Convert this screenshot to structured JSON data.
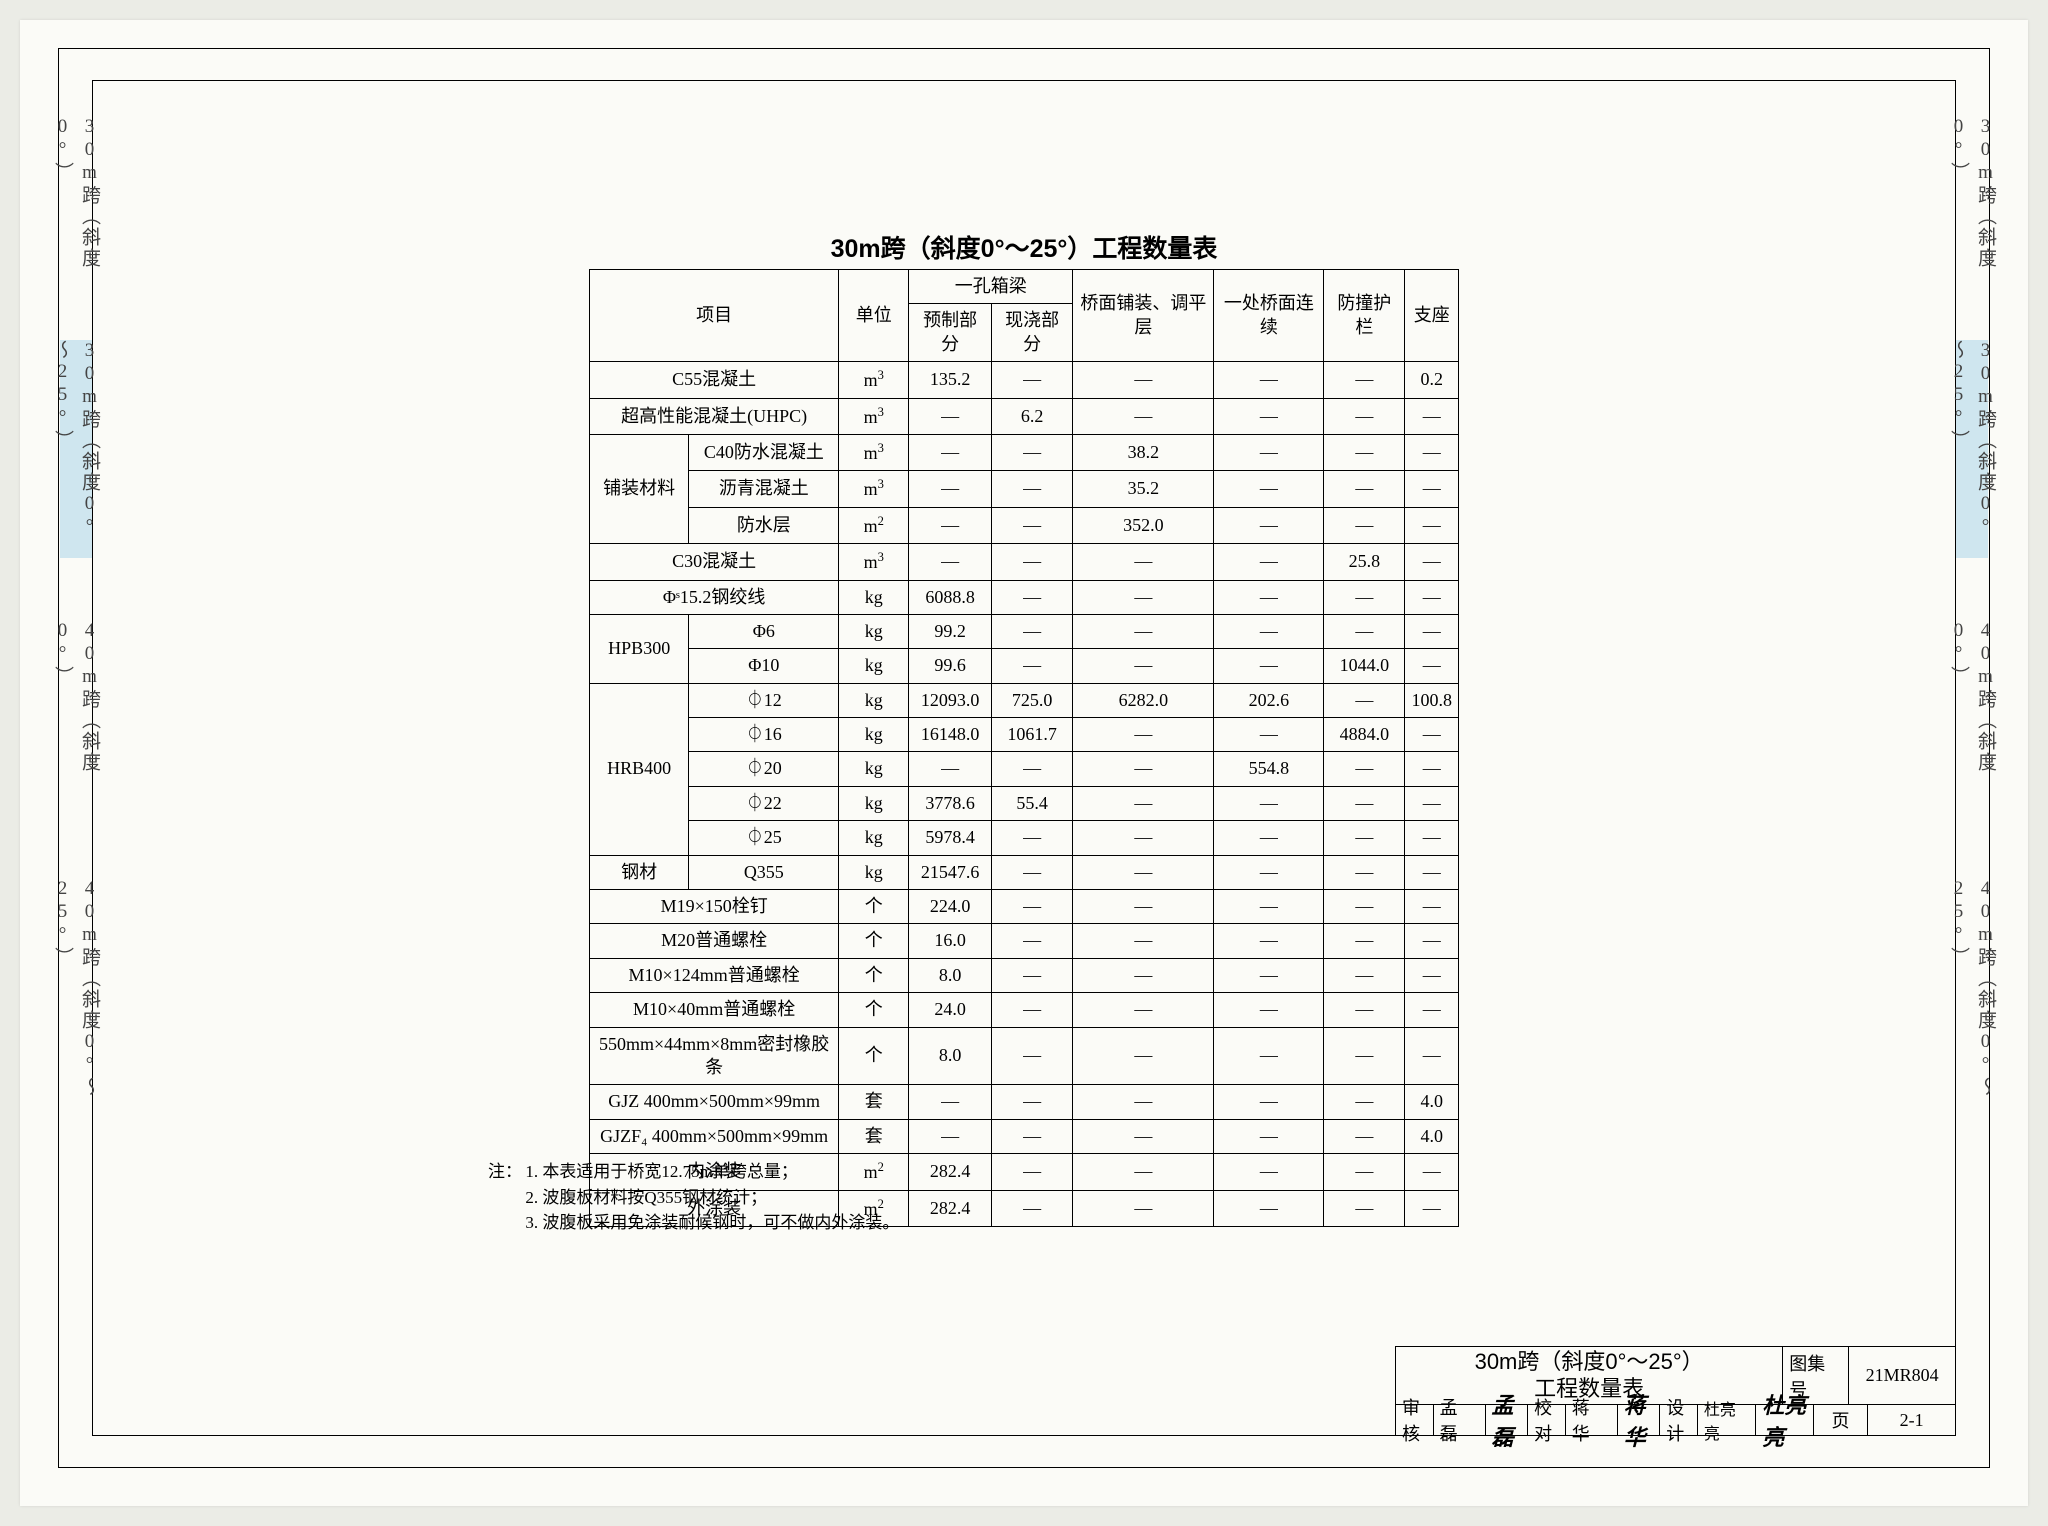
{
  "pageTitle": "30m跨（斜度0°～25°）工程数量表",
  "sideTabs": [
    {
      "text": "30m跨（斜度0°）",
      "active": false
    },
    {
      "text": "30m跨（斜度0°～25°）",
      "active": true
    },
    {
      "text": "40m跨（斜度0°）",
      "active": false
    },
    {
      "text": "40m跨（斜度0°～25°）",
      "active": false
    }
  ],
  "columns": {
    "item": "项目",
    "unit": "单位",
    "boxGirder": "一孔箱梁",
    "boxGirderPre": "预制部分",
    "boxGirderCast": "现浇部分",
    "deckPaving": "桥面铺装、调平层",
    "deckJoint": "一处桥面连续",
    "guardRail": "防撞护栏",
    "bearing": "支座"
  },
  "dash": "—",
  "rows": [
    {
      "item": [
        "C55混凝土"
      ],
      "unit": "m³",
      "v": [
        "135.2",
        "—",
        "—",
        "—",
        "—",
        "0.2"
      ]
    },
    {
      "item": [
        "超高性能混凝土(UHPC)"
      ],
      "unit": "m³",
      "v": [
        "—",
        "6.2",
        "—",
        "—",
        "—",
        "—"
      ]
    },
    {
      "item": [
        "铺装材料",
        "C40防水混凝土"
      ],
      "span": "group3",
      "unit": "m³",
      "v": [
        "—",
        "—",
        "38.2",
        "—",
        "—",
        "—"
      ]
    },
    {
      "item": [
        "",
        "沥青混凝土"
      ],
      "unit": "m³",
      "v": [
        "—",
        "—",
        "35.2",
        "—",
        "—",
        "—"
      ]
    },
    {
      "item": [
        "",
        "防水层"
      ],
      "unit": "m²",
      "v": [
        "—",
        "—",
        "352.0",
        "—",
        "—",
        "—"
      ]
    },
    {
      "item": [
        "C30混凝土"
      ],
      "unit": "m³",
      "v": [
        "—",
        "—",
        "—",
        "—",
        "25.8",
        "—"
      ]
    },
    {
      "item": [
        "Φˢ15.2钢绞线"
      ],
      "unit": "kg",
      "v": [
        "6088.8",
        "—",
        "—",
        "—",
        "—",
        "—"
      ]
    },
    {
      "item": [
        "HPB300",
        "Φ6"
      ],
      "span": "group2",
      "unit": "kg",
      "v": [
        "99.2",
        "—",
        "—",
        "—",
        "—",
        "—"
      ]
    },
    {
      "item": [
        "",
        "Φ10"
      ],
      "unit": "kg",
      "v": [
        "99.6",
        "—",
        "—",
        "—",
        "1044.0",
        "—"
      ]
    },
    {
      "item": [
        "HRB400",
        "⏀12"
      ],
      "span": "group5",
      "unit": "kg",
      "v": [
        "12093.0",
        "725.0",
        "6282.0",
        "202.6",
        "—",
        "100.8"
      ]
    },
    {
      "item": [
        "",
        "⏀16"
      ],
      "unit": "kg",
      "v": [
        "16148.0",
        "1061.7",
        "—",
        "—",
        "4884.0",
        "—"
      ]
    },
    {
      "item": [
        "",
        "⏀20"
      ],
      "unit": "kg",
      "v": [
        "—",
        "—",
        "—",
        "554.8",
        "—",
        "—"
      ]
    },
    {
      "item": [
        "",
        "⏀22"
      ],
      "unit": "kg",
      "v": [
        "3778.6",
        "55.4",
        "—",
        "—",
        "—",
        "—"
      ]
    },
    {
      "item": [
        "",
        "⏀25"
      ],
      "unit": "kg",
      "v": [
        "5978.4",
        "—",
        "—",
        "—",
        "—",
        "—"
      ]
    },
    {
      "item": [
        "钢材",
        "Q355"
      ],
      "unit": "kg",
      "v": [
        "21547.6",
        "—",
        "—",
        "—",
        "—",
        "—"
      ]
    },
    {
      "item": [
        "M19×150栓钉"
      ],
      "unit": "个",
      "v": [
        "224.0",
        "—",
        "—",
        "—",
        "—",
        "—"
      ]
    },
    {
      "item": [
        "M20普通螺栓"
      ],
      "unit": "个",
      "v": [
        "16.0",
        "—",
        "—",
        "—",
        "—",
        "—"
      ]
    },
    {
      "item": [
        "M10×124mm普通螺栓"
      ],
      "unit": "个",
      "v": [
        "8.0",
        "—",
        "—",
        "—",
        "—",
        "—"
      ]
    },
    {
      "item": [
        "M10×40mm普通螺栓"
      ],
      "unit": "个",
      "v": [
        "24.0",
        "—",
        "—",
        "—",
        "—",
        "—"
      ]
    },
    {
      "item": [
        "550mm×44mm×8mm密封橡胶条"
      ],
      "unit": "个",
      "v": [
        "8.0",
        "—",
        "—",
        "—",
        "—",
        "—"
      ]
    },
    {
      "item": [
        "GJZ 400mm×500mm×99mm"
      ],
      "unit": "套",
      "v": [
        "—",
        "—",
        "—",
        "—",
        "—",
        "4.0"
      ]
    },
    {
      "item": [
        "GJZF₄ 400mm×500mm×99mm"
      ],
      "unit": "套",
      "v": [
        "—",
        "—",
        "—",
        "—",
        "—",
        "4.0"
      ]
    },
    {
      "item": [
        "内涂装"
      ],
      "unit": "m²",
      "v": [
        "282.4",
        "—",
        "—",
        "—",
        "—",
        "—"
      ]
    },
    {
      "item": [
        "外涂装"
      ],
      "unit": "m²",
      "v": [
        "282.4",
        "—",
        "—",
        "—",
        "—",
        "—"
      ]
    }
  ],
  "notes": {
    "label": "注：",
    "items": [
      "1. 本表适用于桥宽12.75m单跨总量；",
      "2. 波腹板材料按Q355钢材统计；",
      "3. 波腹板采用免涂装耐候钢时，可不做内外涂装。"
    ]
  },
  "titleBlock": {
    "mainTitle1": "30m跨（斜度0°～25°）",
    "mainTitle2": "工程数量表",
    "albumLabel": "图集号",
    "albumNo": "21MR804",
    "review": "审核",
    "reviewer": "孟 磊",
    "reviewerSig": "孟磊",
    "check": "校对",
    "checker": "蒋 华",
    "checkerSig": "蒋华",
    "design": "设计",
    "designer": "杜亮亮",
    "designerSig": "杜亮亮",
    "pageLabel": "页",
    "pageNo": "2-1"
  },
  "tabLayout": {
    "tops": [
      96,
      320,
      600,
      858
    ],
    "heights": [
      208,
      218,
      200,
      224
    ]
  },
  "colors": {
    "tabActive": "#cfe6ef",
    "border": "#000",
    "paper": "#fbfbf7"
  }
}
